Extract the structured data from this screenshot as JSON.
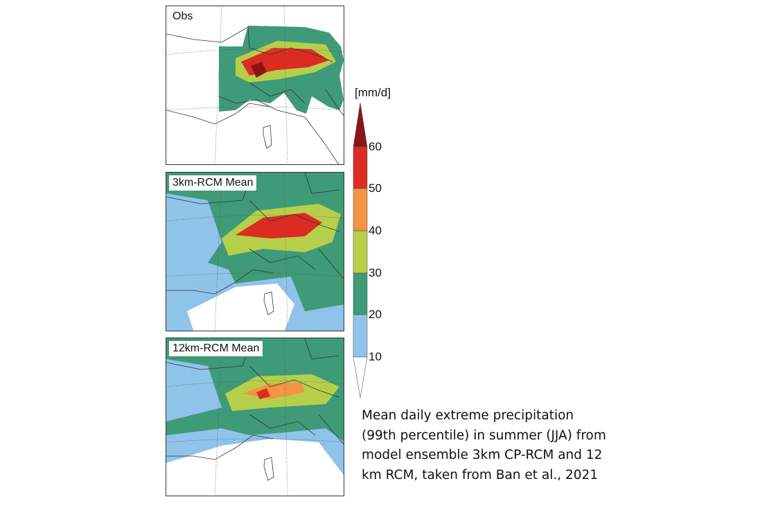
{
  "panels": [
    {
      "label": "Obs"
    },
    {
      "label": "3km-RCM Mean"
    },
    {
      "label": "12km-RCM Mean"
    }
  ],
  "colorbar": {
    "unit": "[mm/d]",
    "ticks": [
      "10",
      "20",
      "30",
      "40",
      "50",
      "60"
    ],
    "colors": {
      "below_10": "#ffffff",
      "10_20": "#8fc3ea",
      "20_30": "#3f9a78",
      "30_40": "#b6cf4a",
      "40_50": "#f39542",
      "50_60": "#dc2c22",
      "above_60": "#8b1515"
    }
  },
  "caption": {
    "lines": [
      "Mean daily extreme precipitation",
      "(99th percentile) in summer (JJA) from",
      "model ensemble 3km CP-RCM and 12",
      "km RCM, taken from Ban et al., 2021"
    ]
  }
}
